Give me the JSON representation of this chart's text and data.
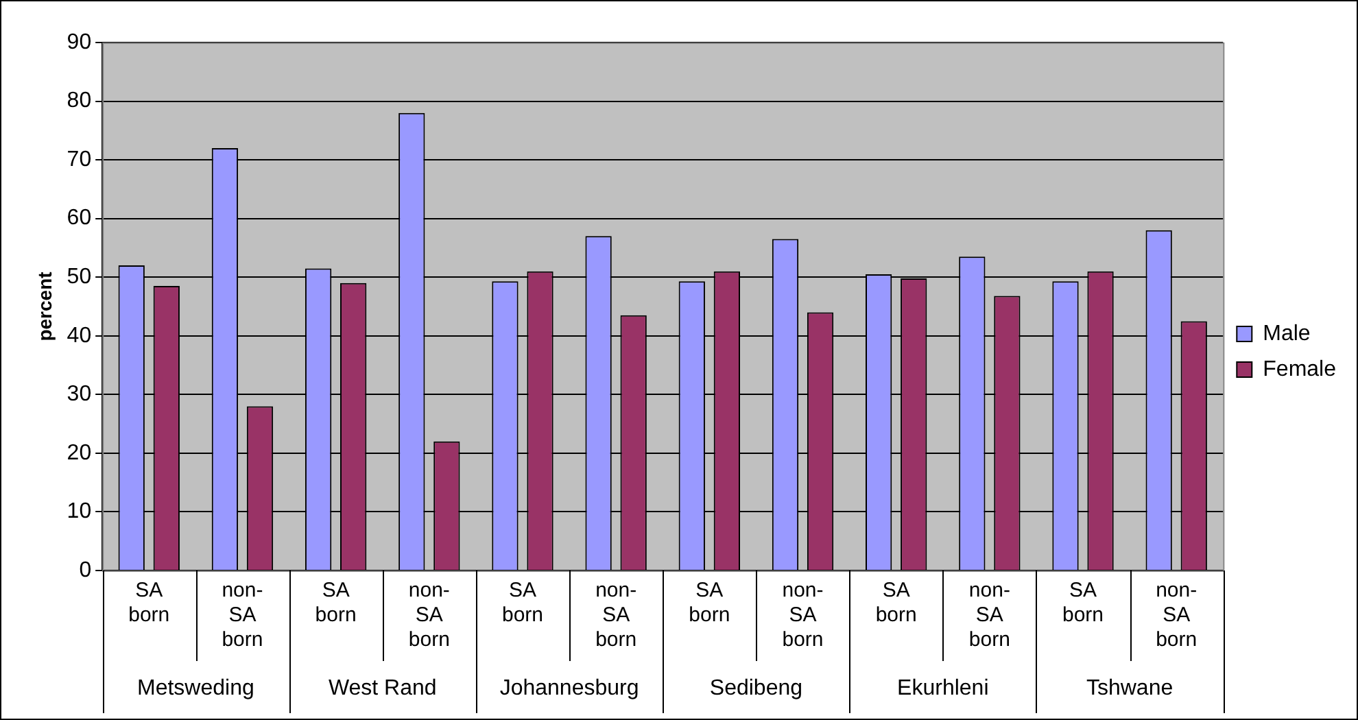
{
  "chart_data": {
    "type": "bar",
    "ylabel": "percent",
    "categories": [
      "SA born",
      "non-SA born",
      "SA born",
      "non-SA born",
      "SA born",
      "non-SA born",
      "SA born",
      "non-SA born",
      "SA born",
      "non-SA born",
      "SA born",
      "non-SA born"
    ],
    "annotations": [
      "Metsweding",
      "West Rand",
      "Johannesburg",
      "Sedibeng",
      "Ekurhleni",
      "Tshwane"
    ],
    "series": [
      {
        "name": "Male",
        "color": "#9999ff",
        "values": [
          52,
          72,
          51.5,
          78,
          49.3,
          57,
          49.3,
          56.5,
          50.5,
          53.5,
          49.3,
          58
        ]
      },
      {
        "name": "Female",
        "color": "#993366",
        "values": [
          48.5,
          28,
          49,
          22,
          51,
          43.5,
          51,
          44,
          49.8,
          46.8,
          51,
          42.5
        ]
      }
    ],
    "ylim": [
      0,
      90
    ],
    "yticks": [
      0,
      10,
      20,
      30,
      40,
      50,
      60,
      70,
      80,
      90
    ],
    "grid": "y",
    "legend": "right"
  }
}
